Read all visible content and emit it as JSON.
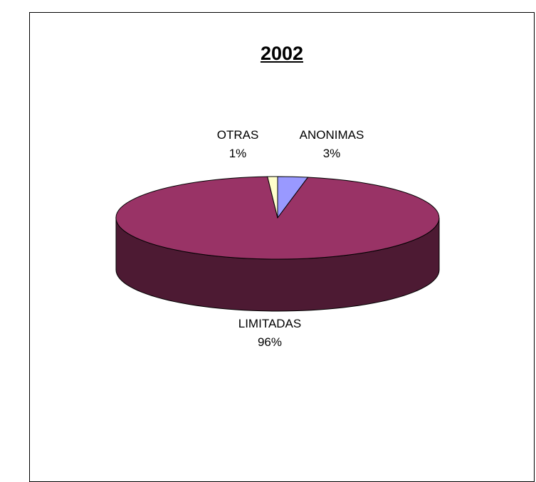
{
  "header": {
    "text": ""
  },
  "chart_data": {
    "type": "pie",
    "title": "2002",
    "slices": [
      {
        "label": "ANONIMAS",
        "value": 3,
        "percent_label": "3%",
        "color": "#9999ff",
        "side_color": "#4d4d80"
      },
      {
        "label": "LIMITADAS",
        "value": 96,
        "percent_label": "96%",
        "color": "#993366",
        "side_color": "#4d1a33"
      },
      {
        "label": "OTRAS",
        "value": 1,
        "percent_label": "1%",
        "color": "#ffffcc",
        "side_color": "#808066"
      }
    ]
  }
}
